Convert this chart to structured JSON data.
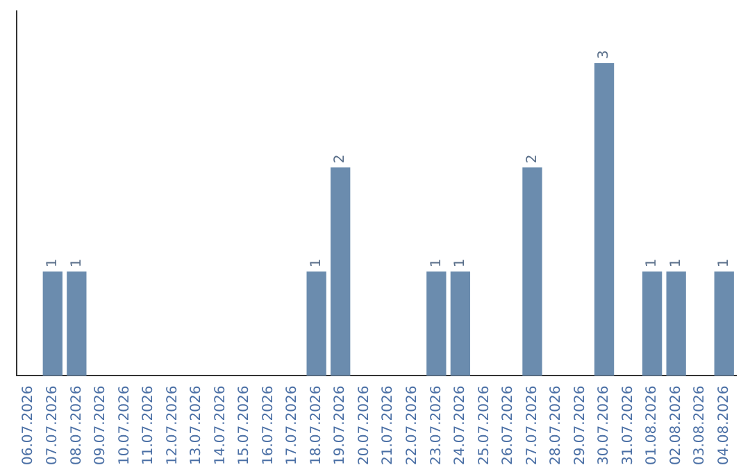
{
  "chart_data": {
    "type": "bar",
    "categories": [
      "06.07.2026",
      "07.07.2026",
      "08.07.2026",
      "09.07.2026",
      "10.07.2026",
      "11.07.2026",
      "12.07.2026",
      "13.07.2026",
      "14.07.2026",
      "15.07.2026",
      "16.07.2026",
      "17.07.2026",
      "18.07.2026",
      "19.07.2026",
      "20.07.2026",
      "21.07.2026",
      "22.07.2026",
      "23.07.2026",
      "24.07.2026",
      "25.07.2026",
      "26.07.2026",
      "27.07.2026",
      "28.07.2026",
      "29.07.2026",
      "30.07.2026",
      "31.07.2026",
      "01.08.2026",
      "02.08.2026",
      "03.08.2026",
      "04.08.2026"
    ],
    "values": [
      0,
      1,
      1,
      0,
      0,
      0,
      0,
      0,
      0,
      0,
      0,
      0,
      1,
      2,
      0,
      0,
      0,
      1,
      1,
      0,
      0,
      2,
      0,
      0,
      3,
      0,
      1,
      1,
      0,
      1
    ],
    "value_labels": [
      null,
      "1",
      "1",
      null,
      null,
      null,
      null,
      null,
      null,
      null,
      null,
      null,
      "1",
      "2",
      null,
      null,
      null,
      "1",
      "1",
      null,
      null,
      "2",
      null,
      null,
      "3",
      null,
      "1",
      "1",
      null,
      "1"
    ],
    "color": "#6b8cae",
    "tick_labels": "x",
    "grid": false,
    "legend": false
  }
}
